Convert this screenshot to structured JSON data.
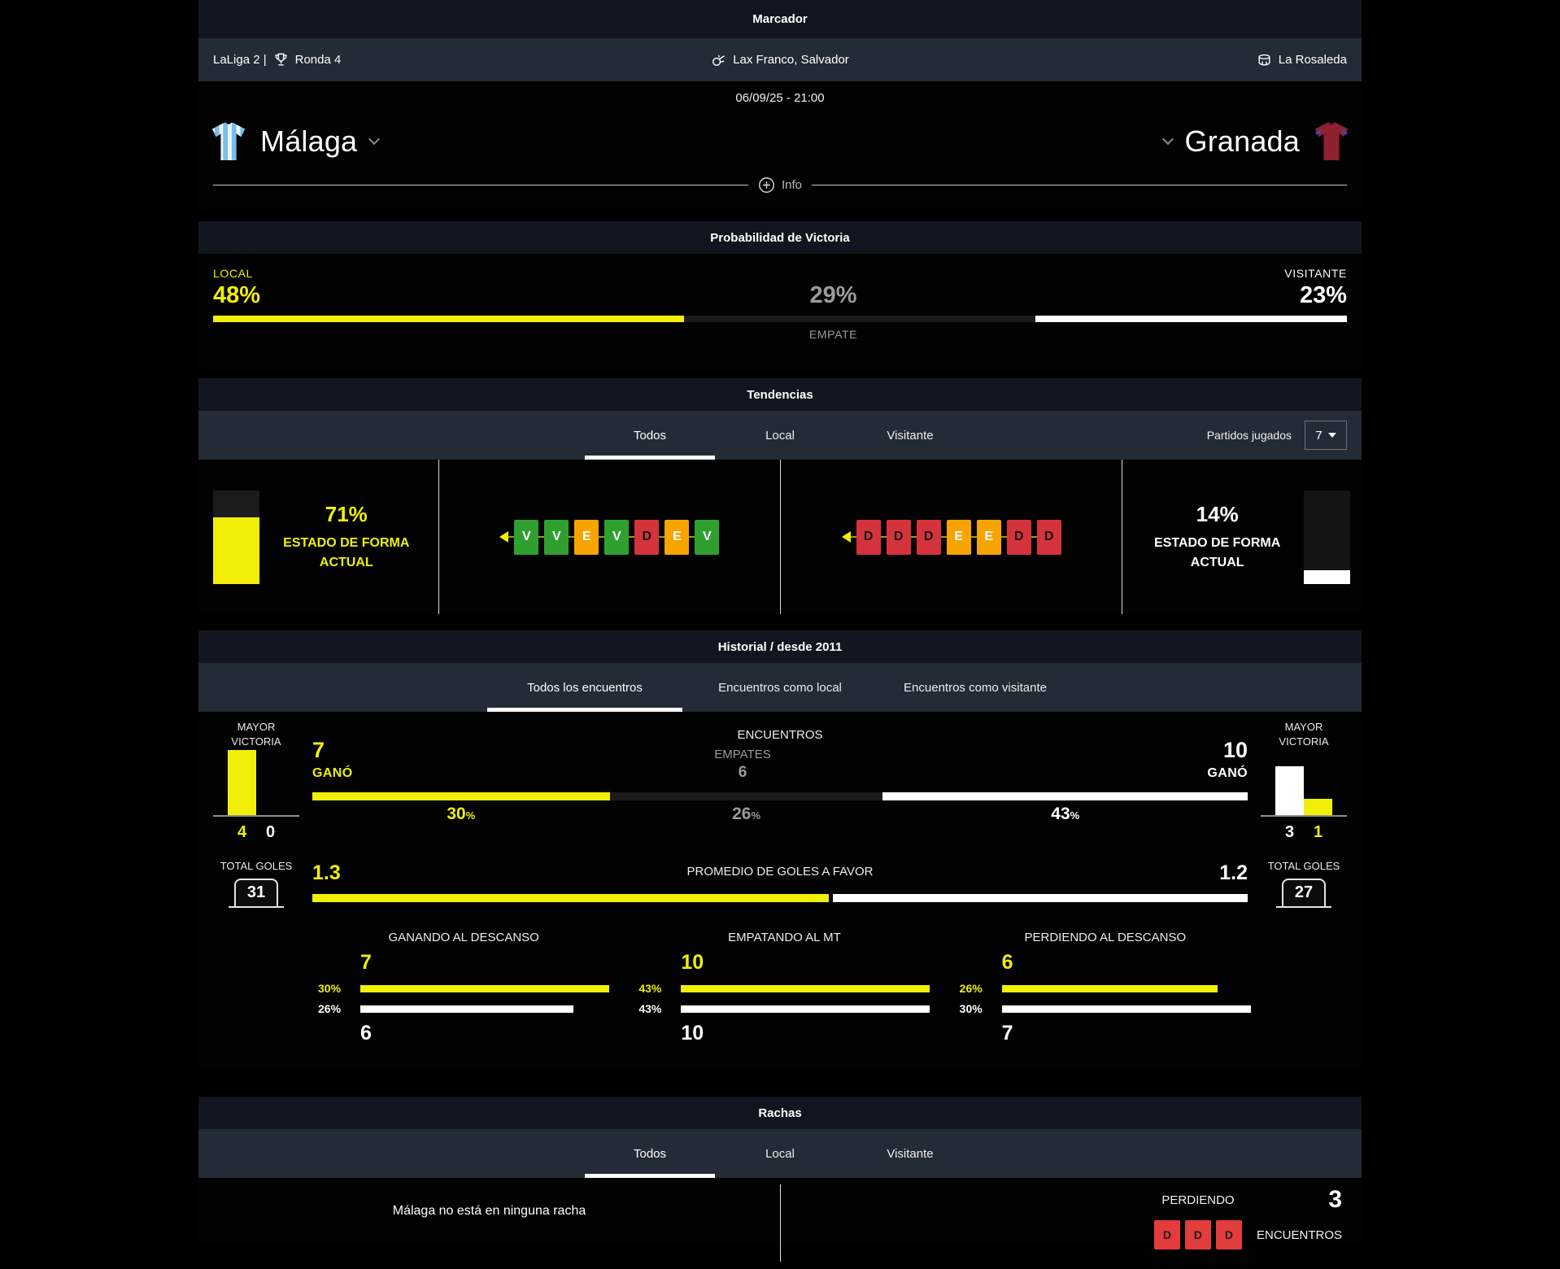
{
  "header": {
    "title": "Marcador",
    "league": "LaLiga 2 |",
    "round": "Ronda 4",
    "referee": "Lax Franco, Salvador",
    "venue": "La Rosaleda",
    "datetime": "06/09/25 - 21:00",
    "home_team": "Málaga",
    "away_team": "Granada",
    "info_label": "Info"
  },
  "probability": {
    "title": "Probabilidad de Victoria",
    "local_label": "LOCAL",
    "local_pct": "48%",
    "draw_pct": "29%",
    "draw_label": "EMPATE",
    "visitor_label": "VISITANTE",
    "visitor_pct": "23%",
    "bar_fractions": {
      "local": 41.5,
      "draw": 31,
      "visitor": 27.5
    }
  },
  "tendencias": {
    "title": "Tendencias",
    "tabs": [
      "Todos",
      "Local",
      "Visitante"
    ],
    "active_tab": "Todos",
    "partidos_label": "Partidos jugados",
    "partidos_value": "7",
    "home": {
      "pct": "71%",
      "value": 71,
      "line1": "ESTADO DE FORMA",
      "line2": "ACTUAL",
      "results": [
        "V",
        "V",
        "E",
        "V",
        "D",
        "E",
        "V"
      ]
    },
    "away": {
      "pct": "14%",
      "value": 14,
      "line1": "ESTADO DE FORMA",
      "line2": "ACTUAL",
      "results": [
        "D",
        "D",
        "D",
        "E",
        "E",
        "D",
        "D"
      ]
    }
  },
  "historial": {
    "title": "Historial / desde 2011",
    "tabs": [
      "Todos los encuentros",
      "Encuentros como local",
      "Encuentros como visitante"
    ],
    "active_tab": "Todos los encuentros",
    "labels": {
      "mayor1": "MAYOR",
      "mayor2": "VICTORIA",
      "encuentros": "ENCUENTROS",
      "empates": "EMPATES",
      "gano": "GANÓ",
      "total_goles": "TOTAL GOLES",
      "promedio": "PROMEDIO DE GOLES A FAVOR",
      "pct_symbol": "%"
    },
    "home_side": {
      "wins": "7",
      "win_pct": "30",
      "total_goals": "31",
      "avg_goals": "1.3",
      "biggest_win": {
        "goals_for": 4,
        "goals_against": 0
      }
    },
    "draws": {
      "count": "6",
      "pct": "26"
    },
    "away_side": {
      "wins": "10",
      "win_pct": "43",
      "total_goals": "27",
      "avg_goals": "1.2",
      "biggest_win": {
        "goals_for": 3,
        "goals_against": 1
      }
    },
    "enc_bar_fractions": {
      "home": 31.8,
      "draw": 29.2,
      "away": 39.0
    },
    "prom_bar_fractions": {
      "home": 55.3,
      "away": 44.4
    },
    "halftime": [
      {
        "title": "GANANDO AL DESCANSO",
        "home": "7",
        "home_pct": "30%",
        "home_bar": 100,
        "away_pct": "26%",
        "away_bar": 85.6,
        "away": "6"
      },
      {
        "title": "EMPATANDO AL MT",
        "home": "10",
        "home_pct": "43%",
        "home_bar": 100,
        "away_pct": "43%",
        "away_bar": 100,
        "away": "10"
      },
      {
        "title": "PERDIENDO AL DESCANSO",
        "home": "6",
        "home_pct": "26%",
        "home_bar": 86.6,
        "away_pct": "30%",
        "away_bar": 100,
        "away": "7"
      }
    ]
  },
  "rachas": {
    "title": "Rachas",
    "tabs": [
      "Todos",
      "Local",
      "Visitante"
    ],
    "active_tab": "Todos",
    "home_streak_text": "Málaga no está en ninguna racha",
    "away_streak": {
      "label": "PERDIENDO",
      "count": "3",
      "unit": "ENCUENTROS",
      "results": [
        "D",
        "D",
        "D"
      ]
    }
  },
  "colors": {
    "yellow": "#f1ef08",
    "green": "#2fa02f",
    "orange": "#f7a400",
    "red": "#d5333c",
    "streak_red": "#e23c3c",
    "header_bar": "#10151f",
    "tab_bar": "#232b36"
  }
}
